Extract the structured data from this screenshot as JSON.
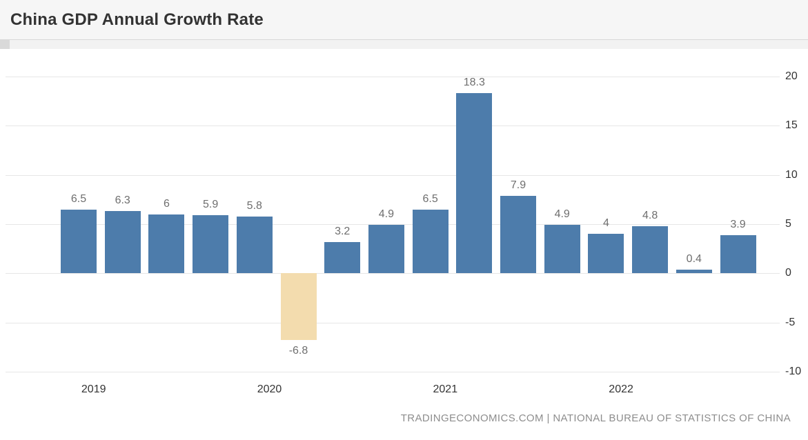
{
  "header": {
    "title": "China GDP Annual Growth Rate"
  },
  "footer": {
    "text": "TRADINGECONOMICS.COM | NATIONAL BUREAU OF STATISTICS OF CHINA"
  },
  "chart_data": {
    "type": "bar",
    "title": "China GDP Annual Growth Rate",
    "values": [
      6.5,
      6.3,
      6,
      5.9,
      5.8,
      -6.8,
      3.2,
      4.9,
      6.5,
      18.3,
      7.9,
      4.9,
      4,
      4.8,
      0.4,
      3.9
    ],
    "bar_labels": [
      "6.5",
      "6.3",
      "6",
      "5.9",
      "5.8",
      "-6.8",
      "3.2",
      "4.9",
      "6.5",
      "18.3",
      "7.9",
      "4.9",
      "4",
      "4.8",
      "0.4",
      "3.9"
    ],
    "x_tick_labels": [
      "2019",
      "2020",
      "2021",
      "2022"
    ],
    "bars_per_year": 4,
    "y_ticks": [
      20,
      15,
      10,
      5,
      0,
      -5,
      -10
    ],
    "ylim": [
      -10,
      20
    ],
    "grid": true,
    "y_axis_position": "right",
    "legend": "none",
    "colors": {
      "bar_positive": "#4d7cab",
      "bar_negative": "#f3dcae",
      "grid": "#e6e6e6",
      "bar_label": "#6e6e6e",
      "axis_text": "#333333",
      "footer_text": "#8d8d8d"
    }
  }
}
